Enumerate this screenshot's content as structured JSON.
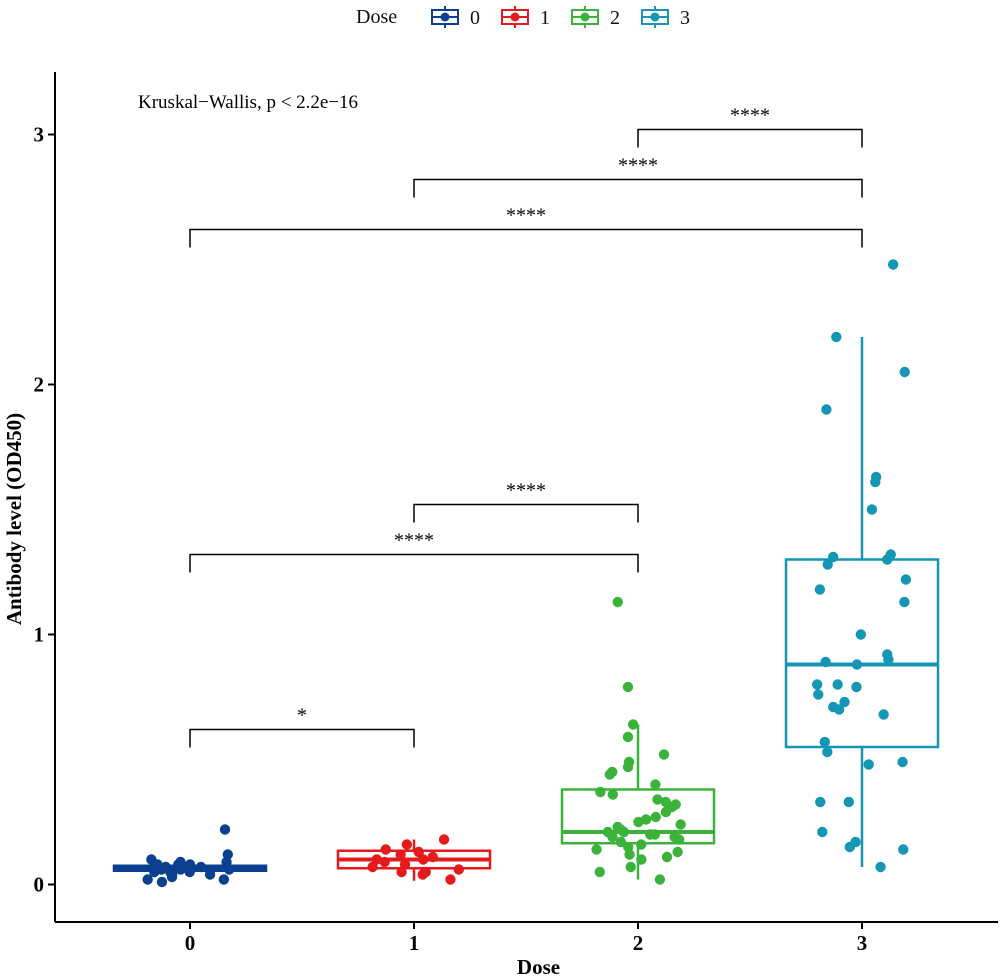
{
  "chart_data": {
    "type": "box",
    "xlabel": "Dose",
    "ylabel": "Antibody level  (OD450)",
    "categories": [
      "0",
      "1",
      "2",
      "3"
    ],
    "ylim": [
      -0.15,
      3.25
    ],
    "yticks": [
      0,
      1,
      2,
      3
    ],
    "legend": {
      "title": "Dose",
      "position": "top",
      "entries": [
        "0",
        "1",
        "2",
        "3"
      ]
    },
    "colors": {
      "0": "#0b3f8f",
      "1": "#e41a1c",
      "2": "#3bb33b",
      "3": "#1496b4"
    },
    "annotation": "Kruskal−Wallis, p < 2.2e−16",
    "grid": false,
    "boxes": [
      {
        "group": "0",
        "q1": 0.055,
        "median": 0.065,
        "q3": 0.075,
        "whisker_low": 0.035,
        "whisker_high": 0.1
      },
      {
        "group": "1",
        "q1": 0.065,
        "median": 0.1,
        "q3": 0.135,
        "whisker_low": 0.015,
        "whisker_high": 0.18
      },
      {
        "group": "2",
        "q1": 0.165,
        "median": 0.21,
        "q3": 0.38,
        "whisker_low": 0.02,
        "whisker_high": 0.64
      },
      {
        "group": "3",
        "q1": 0.55,
        "median": 0.88,
        "q3": 1.3,
        "whisker_low": 0.07,
        "whisker_high": 2.19
      }
    ],
    "points": [
      {
        "group": "0",
        "values": [
          0.22,
          0.12,
          0.1,
          0.09,
          0.09,
          0.08,
          0.08,
          0.08,
          0.07,
          0.07,
          0.07,
          0.06,
          0.06,
          0.06,
          0.05,
          0.05,
          0.05,
          0.04,
          0.04,
          0.03,
          0.02,
          0.02,
          0.01
        ]
      },
      {
        "group": "1",
        "values": [
          0.18,
          0.16,
          0.14,
          0.13,
          0.12,
          0.11,
          0.1,
          0.1,
          0.09,
          0.08,
          0.07,
          0.06,
          0.05,
          0.05,
          0.04,
          0.02
        ]
      },
      {
        "group": "2",
        "values": [
          1.13,
          0.79,
          0.64,
          0.59,
          0.52,
          0.49,
          0.47,
          0.45,
          0.44,
          0.4,
          0.37,
          0.36,
          0.34,
          0.33,
          0.32,
          0.31,
          0.29,
          0.27,
          0.26,
          0.25,
          0.24,
          0.23,
          0.22,
          0.21,
          0.21,
          0.2,
          0.2,
          0.19,
          0.19,
          0.18,
          0.17,
          0.16,
          0.15,
          0.14,
          0.13,
          0.12,
          0.11,
          0.1,
          0.07,
          0.05,
          0.02
        ]
      },
      {
        "group": "3",
        "values": [
          2.48,
          2.19,
          2.05,
          1.9,
          1.63,
          1.61,
          1.5,
          1.32,
          1.31,
          1.3,
          1.28,
          1.22,
          1.18,
          1.13,
          1.0,
          0.92,
          0.9,
          0.89,
          0.88,
          0.8,
          0.8,
          0.79,
          0.76,
          0.73,
          0.71,
          0.7,
          0.68,
          0.57,
          0.53,
          0.49,
          0.48,
          0.33,
          0.33,
          0.21,
          0.17,
          0.15,
          0.14,
          0.07
        ]
      }
    ],
    "comparisons": [
      {
        "from": "0",
        "to": "1",
        "y": 0.62,
        "label": "*"
      },
      {
        "from": "0",
        "to": "2",
        "y": 1.32,
        "label": "****"
      },
      {
        "from": "1",
        "to": "2",
        "y": 1.52,
        "label": "****"
      },
      {
        "from": "0",
        "to": "3",
        "y": 2.62,
        "label": "****"
      },
      {
        "from": "1",
        "to": "3",
        "y": 2.82,
        "label": "****"
      },
      {
        "from": "2",
        "to": "3",
        "y": 3.02,
        "label": "****"
      }
    ]
  }
}
